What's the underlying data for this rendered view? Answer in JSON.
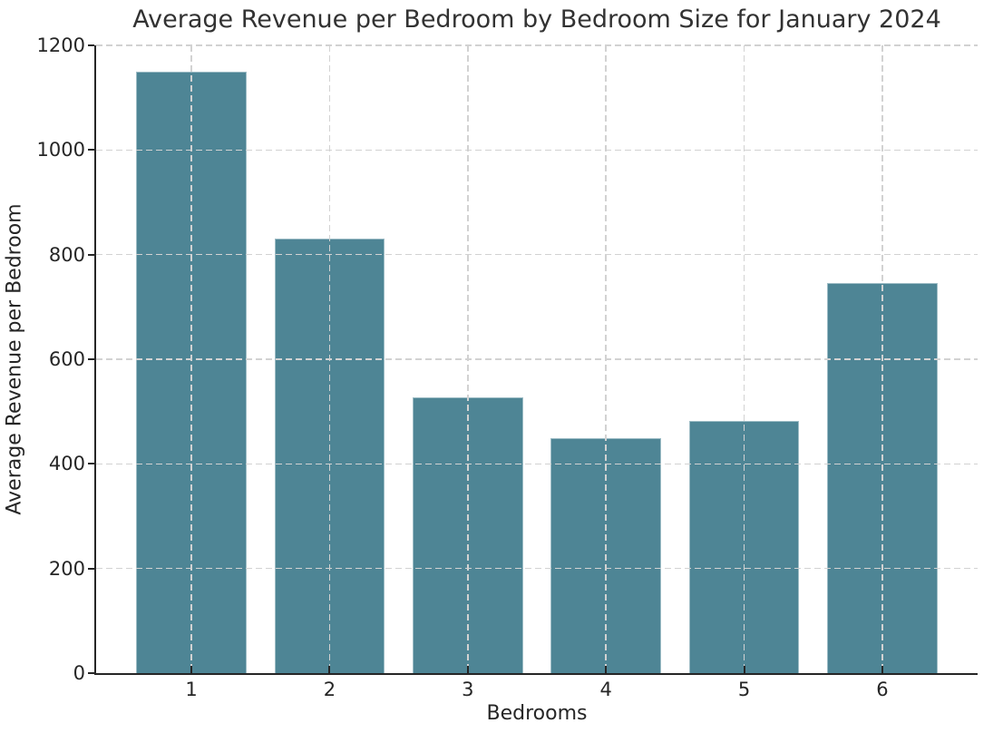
{
  "chart_data": {
    "type": "bar",
    "title": "Average Revenue per Bedroom by Bedroom Size for January 2024",
    "xlabel": "Bedrooms",
    "ylabel": "Average Revenue per Bedroom",
    "categories": [
      "1",
      "2",
      "3",
      "4",
      "5",
      "6"
    ],
    "values": [
      1150,
      830,
      528,
      449,
      482,
      746
    ],
    "ylim": [
      0,
      1200
    ],
    "yticks": [
      0,
      200,
      400,
      600,
      800,
      1000,
      1200
    ],
    "bar_color": "#4e8595",
    "grid": true,
    "grid_style": "dashed",
    "grid_color": "#d2d2d2",
    "legend_position": "none",
    "spine_color": "#262626"
  }
}
